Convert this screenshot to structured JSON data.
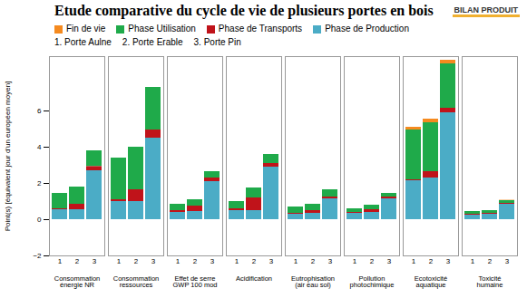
{
  "chart_data": {
    "type": "bar",
    "stacked": true,
    "title": "Etude comparative du cycle de vie de plusieurs portes en bois",
    "logo": "BILAN PRODUIT",
    "y_label": "Point(s) [équivalent jour d'un européen moyen]",
    "categories": [
      "Consommation énergie NR",
      "Consommation ressources",
      "Effet de serre GWP 100 mod",
      "Acidification",
      "Eutrophisation (air eau sol)",
      "Pollution photochimique",
      "Ecotoxicité aquatique",
      "Toxicité humaine"
    ],
    "doors": [
      1,
      2,
      3
    ],
    "door_labels": [
      "1. Porte Aulne",
      "2. Porte Erable",
      "3. Porte Pin"
    ],
    "series": [
      {
        "name": "Fin de vie",
        "color": "#f58a1f",
        "values": [
          [
            0,
            0,
            0
          ],
          [
            0,
            0,
            0
          ],
          [
            0,
            0,
            0
          ],
          [
            0,
            0,
            0
          ],
          [
            0,
            0,
            0
          ],
          [
            0,
            0,
            0
          ],
          [
            0.15,
            0.2,
            0.2
          ],
          [
            0,
            0,
            0.02
          ]
        ]
      },
      {
        "name": "Phase Utilisation",
        "color": "#1faa4a",
        "values": [
          [
            0.85,
            0.95,
            0.87
          ],
          [
            2.3,
            2.35,
            2.35
          ],
          [
            0.35,
            0.35,
            0.35
          ],
          [
            0.4,
            0.55,
            0.5
          ],
          [
            0.35,
            0.35,
            0.4
          ],
          [
            0.2,
            0.25,
            0.2
          ],
          [
            2.75,
            2.7,
            2.45
          ],
          [
            0.15,
            0.15,
            0.15
          ]
        ]
      },
      {
        "name": "Phase de Transports",
        "color": "#c0131a",
        "values": [
          [
            0.05,
            0.3,
            0.23
          ],
          [
            0.1,
            0.65,
            0.45
          ],
          [
            0.1,
            0.3,
            0.2
          ],
          [
            0.1,
            0.7,
            0.2
          ],
          [
            0.05,
            0.15,
            0.1
          ],
          [
            0.05,
            0.15,
            0.1
          ],
          [
            0.05,
            0.35,
            0.25
          ],
          [
            0.05,
            0.05,
            0.05
          ]
        ]
      },
      {
        "name": "Phase de Production",
        "color": "#4bacc6",
        "values": [
          [
            0.55,
            0.55,
            2.7
          ],
          [
            1.0,
            1.0,
            4.5
          ],
          [
            0.4,
            0.45,
            2.1
          ],
          [
            0.5,
            0.5,
            2.9
          ],
          [
            0.3,
            0.35,
            1.15
          ],
          [
            0.35,
            0.4,
            1.15
          ],
          [
            2.15,
            2.3,
            5.9
          ],
          [
            0.25,
            0.3,
            0.85
          ]
        ]
      }
    ],
    "ylim": [
      -2,
      9
    ],
    "yticks": [
      -2,
      0,
      2,
      4,
      6
    ],
    "grid": false,
    "legend": "top"
  }
}
